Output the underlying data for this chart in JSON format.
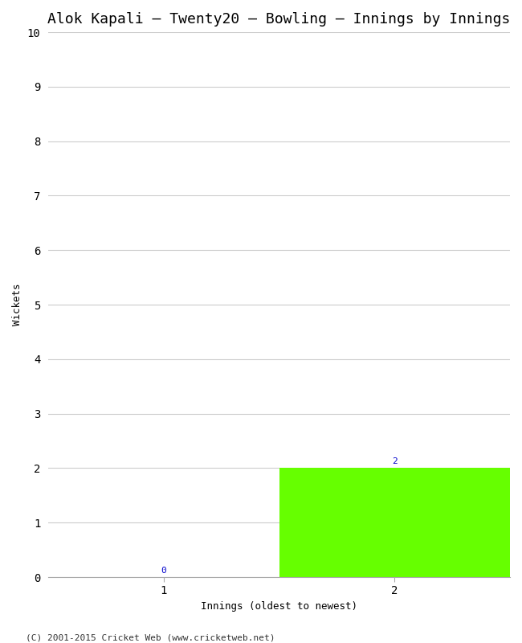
{
  "title": "Alok Kapali – Twenty20 – Bowling – Innings by Innings",
  "xlabel": "Innings (oldest to newest)",
  "ylabel": "Wickets",
  "categories": [
    1,
    2
  ],
  "values": [
    0,
    2
  ],
  "bar_color": "#66ff00",
  "ylim": [
    0,
    10
  ],
  "yticks": [
    0,
    1,
    2,
    3,
    4,
    5,
    6,
    7,
    8,
    9,
    10
  ],
  "xticks": [
    1,
    2
  ],
  "background_color": "#ffffff",
  "grid_color": "#cccccc",
  "title_fontsize": 13,
  "axis_label_fontsize": 9,
  "tick_fontsize": 10,
  "value_label_fontsize": 8,
  "footer": "(C) 2001-2015 Cricket Web (www.cricketweb.net)",
  "footer_fontsize": 8,
  "value_label_color": "#0000cc",
  "font_family": "monospace",
  "xlim": [
    0.5,
    2.5
  ]
}
